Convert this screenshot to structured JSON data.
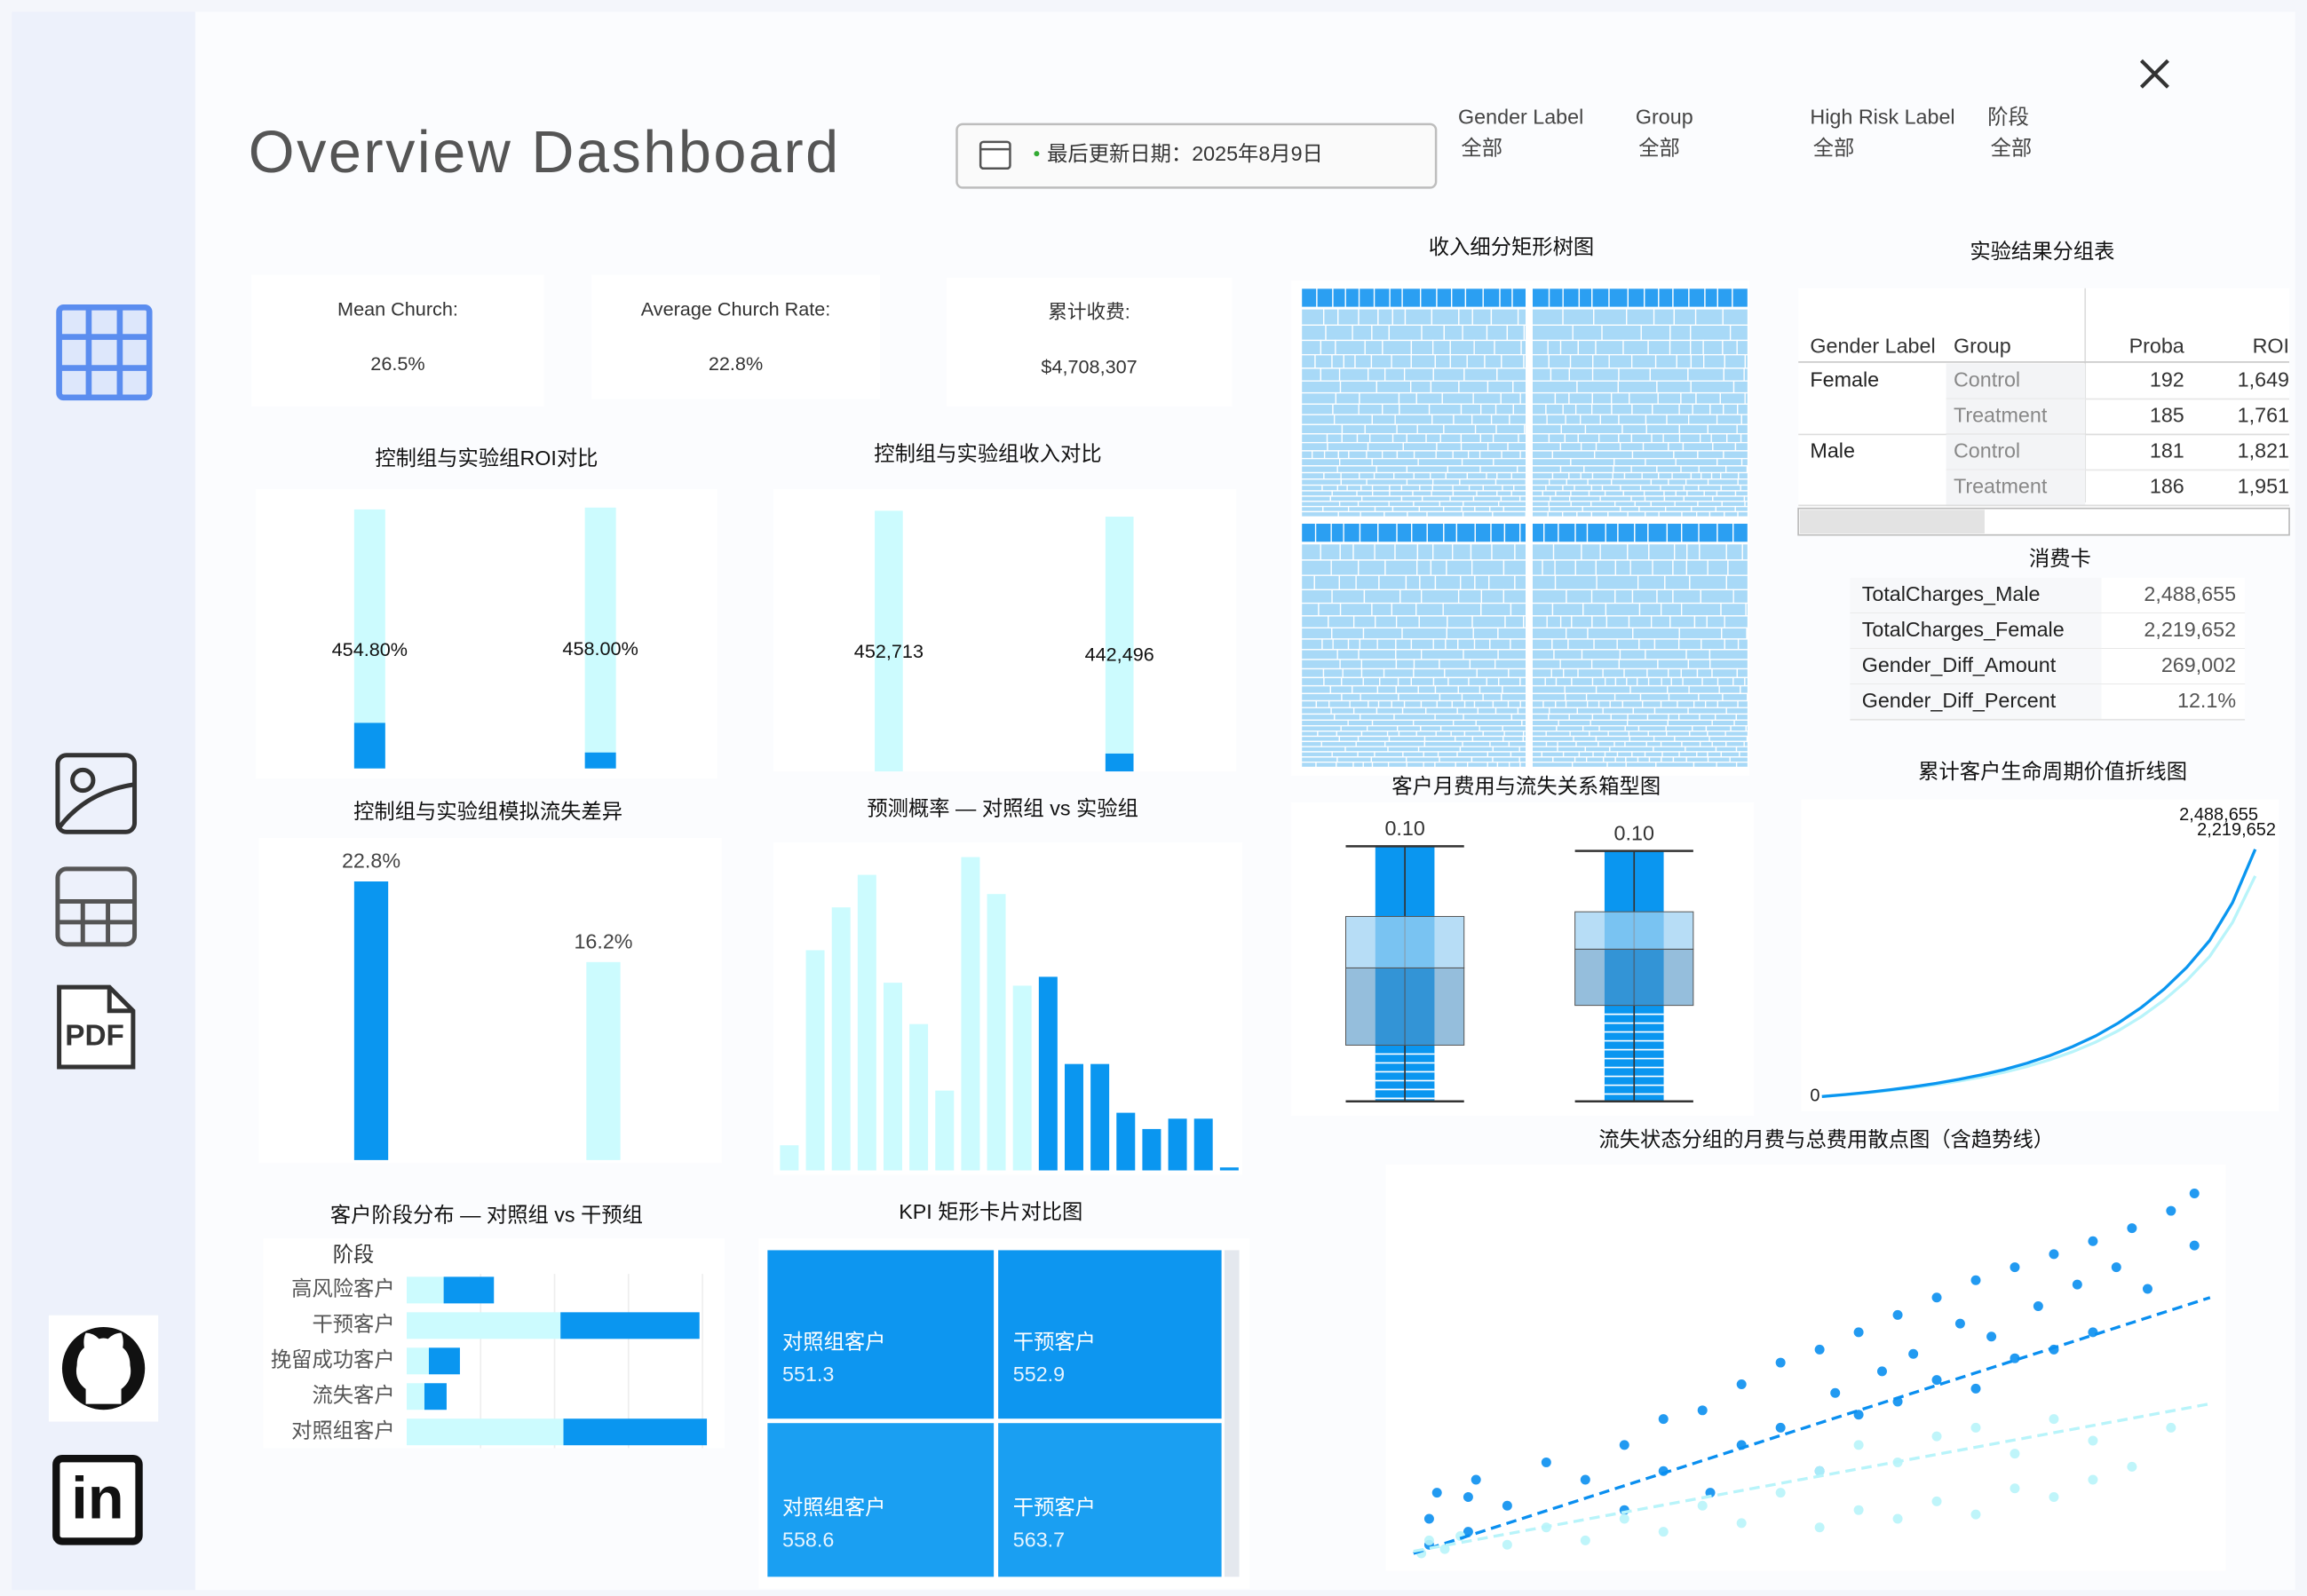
{
  "header": {
    "title": "Overview Dashboard",
    "update_label": "最后更新日期：2025年8月9日",
    "filters": [
      {
        "label": "Gender Label",
        "value": "全部"
      },
      {
        "label": "Group",
        "value": "全部"
      },
      {
        "label": "High Risk Label",
        "value": "全部"
      },
      {
        "label": "阶段",
        "value": "全部"
      }
    ]
  },
  "kpis": [
    {
      "label": "Mean Church:",
      "value": "26.5%"
    },
    {
      "label": "Average Church Rate:",
      "value": "22.8%"
    },
    {
      "label": "累计收费:",
      "value": "$4,708,307"
    }
  ],
  "chart_data": [
    {
      "type": "bar",
      "title": "控制组与实验组ROI对比",
      "values": [
        454.8,
        458.0
      ],
      "value_labels": [
        "454.80%",
        "458.00%"
      ],
      "color": "#ccfbfe",
      "accent_values": [
        80,
        28
      ],
      "accent_color": "#0a96f0",
      "ylim": [
        0,
        480
      ]
    },
    {
      "type": "bar",
      "title": "控制组与实验组收入对比",
      "values": [
        452713,
        442496
      ],
      "value_labels": [
        "452,713",
        "442,496"
      ],
      "color": "#ccfbfe",
      "accent_values": [
        0,
        31000
      ],
      "accent_color": "#0a96f0",
      "ylim": [
        0,
        480000
      ]
    },
    {
      "type": "bar",
      "title": "控制组与实验组模拟流失差异",
      "values": [
        22.8,
        16.2
      ],
      "value_labels": [
        "22.8%",
        "16.2%"
      ],
      "colors": [
        "#0a96f0",
        "#ccfbfe"
      ],
      "ylim": [
        0,
        26
      ]
    },
    {
      "type": "bar",
      "title": "预测概率 — 对照组 vs 实验组",
      "ylim": [
        0,
        222
      ],
      "series": [
        {
          "color": "#ccfbfe",
          "values": [
            17,
            149,
            178,
            200,
            127,
            99,
            54,
            212,
            187,
            125,
            null,
            null,
            null,
            null,
            null,
            null,
            null,
            null
          ]
        },
        {
          "color": "#0a96f0",
          "values": [
            null,
            null,
            null,
            null,
            null,
            null,
            null,
            null,
            null,
            null,
            131,
            72,
            72,
            39,
            28,
            35,
            35,
            2
          ]
        }
      ]
    },
    {
      "type": "hbar",
      "title": "客户阶段分布 — 对照组 vs 干预组",
      "axis_label": "阶段",
      "categories": [
        "高风险客户",
        "干预客户",
        "挽留成功客户",
        "流失客户",
        "对照组客户"
      ],
      "series": [
        {
          "color": "#ccfbfe",
          "values": [
            25,
            104,
            15,
            12,
            106
          ]
        },
        {
          "color": "#0a96f0",
          "values": [
            34,
            94,
            21,
            15,
            97
          ]
        }
      ],
      "xlim": [
        0,
        215
      ],
      "stacked": true
    },
    {
      "type": "treemap",
      "title": "KPI 矩形卡片对比图",
      "categories": [
        "对照组客户",
        "干预客户",
        "对照组客户",
        "干预客户"
      ],
      "values": [
        551.3,
        552.9,
        558.6,
        563.7
      ],
      "colors": [
        "#0d96f0",
        "#0d96f0",
        "#1a9ff2",
        "#1a9ff2"
      ]
    },
    {
      "type": "treemap",
      "title": "收入细分矩形树图",
      "color": "#a8d9f7",
      "header_color": "#2b9ff2"
    },
    {
      "type": "box",
      "title": "客户月费用与流失关系箱型图",
      "ylim": [
        0,
        120
      ],
      "labels": [
        "0.10",
        "0.10"
      ],
      "boxes": [
        {
          "low": 3,
          "q1": 27,
          "median": 60,
          "q3": 82,
          "high": 112
        },
        {
          "low": 3,
          "q1": 44,
          "median": 68,
          "q3": 84,
          "high": 110
        }
      ],
      "color": "#0a96f0"
    },
    {
      "type": "line",
      "title": "累计客户生命周期价值折线图",
      "ylim": [
        0,
        2930000
      ],
      "yticks": [
        0
      ],
      "series": [
        {
          "color": "#0a96f0",
          "end_label": "2,488,655",
          "values": [
            0,
            20000,
            42000,
            68000,
            98000,
            132000,
            172000,
            218000,
            272000,
            336000,
            412000,
            502000,
            610000,
            740000,
            895000,
            1080000,
            1300000,
            1570000,
            1950000,
            2488655
          ]
        },
        {
          "color": "#b8f4fa",
          "end_label": "2,219,652",
          "values": [
            0,
            18000,
            38000,
            61000,
            88000,
            119000,
            155000,
            196000,
            245000,
            302000,
            370000,
            451000,
            548000,
            664000,
            803000,
            970000,
            1168000,
            1410000,
            1750000,
            2219652
          ]
        }
      ]
    },
    {
      "type": "scatter",
      "title": "流失状态分组的月费与总费用散点图（含趋势线）",
      "xlim": [
        15,
        122
      ],
      "ylim": [
        -200,
        9000
      ],
      "series": [
        {
          "color": "#0a8ff0",
          "x": [
            20,
            20,
            21,
            25,
            25,
            26,
            30,
            35,
            40,
            45,
            45,
            50,
            50,
            55,
            56,
            60,
            60,
            65,
            65,
            70,
            70,
            72,
            75,
            75,
            78,
            80,
            80,
            82,
            85,
            85,
            88,
            90,
            90,
            92,
            95,
            95,
            98,
            100,
            100,
            103,
            105,
            105,
            108,
            110,
            112,
            115,
            118,
            118
          ],
          "y": [
            300,
            900,
            1500,
            600,
            1400,
            1800,
            1200,
            2200,
            1800,
            2600,
            1100,
            3200,
            2000,
            3400,
            1500,
            4000,
            2600,
            4500,
            3000,
            4800,
            2000,
            3800,
            5200,
            3300,
            4300,
            5600,
            3600,
            4700,
            6000,
            4100,
            5400,
            6400,
            3900,
            5100,
            6700,
            4600,
            5800,
            7000,
            4800,
            6300,
            7300,
            5200,
            6700,
            7600,
            6200,
            8000,
            8400,
            7200
          ],
          "trend": {
            "x": [
              18,
              120
            ],
            "y": [
              100,
              6000
            ]
          }
        },
        {
          "color": "#b8f4fa",
          "x": [
            19,
            20,
            22,
            24,
            30,
            35,
            40,
            45,
            50,
            55,
            60,
            65,
            70,
            70,
            75,
            75,
            80,
            80,
            85,
            85,
            90,
            90,
            95,
            95,
            100,
            100,
            105,
            105,
            110,
            115
          ],
          "y": [
            100,
            400,
            200,
            500,
            300,
            700,
            400,
            900,
            600,
            1200,
            800,
            1500,
            700,
            2000,
            1100,
            2600,
            900,
            2200,
            1300,
            2800,
            1000,
            3000,
            1600,
            2400,
            1400,
            3200,
            1800,
            2700,
            2100,
            3000
          ],
          "trend": {
            "x": [
              18,
              120
            ],
            "y": [
              150,
              3550
            ]
          }
        }
      ]
    }
  ],
  "result_table": {
    "title": "实验结果分组表",
    "columns": [
      "Gender Label",
      "Group",
      "Proba",
      "ROI"
    ],
    "groups": [
      {
        "gender": "Female",
        "rows": [
          [
            "Control",
            "192",
            "1,649"
          ],
          [
            "Treatment",
            "185",
            "1,761"
          ]
        ]
      },
      {
        "gender": "Male",
        "rows": [
          [
            "Control",
            "181",
            "1,821"
          ],
          [
            "Treatment",
            "186",
            "1,951"
          ]
        ]
      }
    ]
  },
  "spend_card": {
    "title": "消费卡",
    "rows": [
      [
        "TotalCharges_Male",
        "2,488,655"
      ],
      [
        "TotalCharges_Female",
        "2,219,652"
      ],
      [
        "Gender_Diff_Amount",
        "269,002"
      ],
      [
        "Gender_Diff_Percent",
        "12.1%"
      ]
    ]
  }
}
